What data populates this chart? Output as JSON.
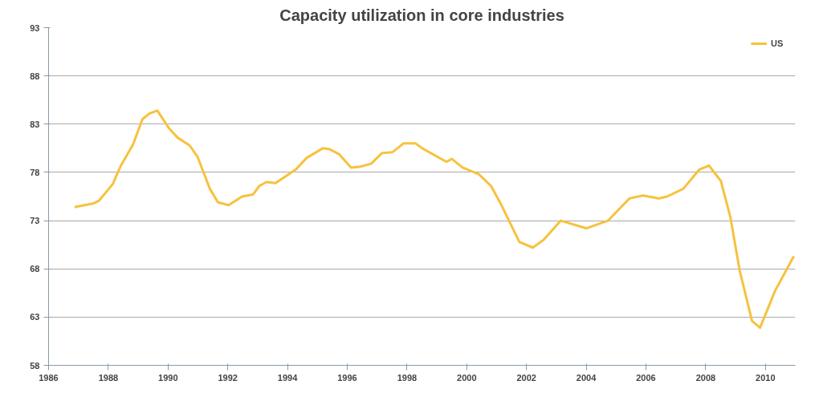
{
  "chart_data": {
    "type": "line",
    "title": "Capacity utilization in core industries",
    "series": [
      {
        "name": "US",
        "color": "#f6c23e",
        "x": [
          1986.87,
          1987.52,
          1987.7,
          1988.15,
          1988.42,
          1988.83,
          1989.14,
          1989.37,
          1989.64,
          1990.05,
          1990.32,
          1990.72,
          1990.99,
          1991.4,
          1991.67,
          1992.03,
          1992.48,
          1992.84,
          1993.06,
          1993.29,
          1993.6,
          1994.28,
          1994.64,
          1995.18,
          1995.41,
          1995.72,
          1996.13,
          1996.44,
          1996.8,
          1997.16,
          1997.52,
          1997.88,
          1998.29,
          1998.51,
          1999.32,
          1999.5,
          1999.86,
          2000.41,
          2000.81,
          2001.13,
          2001.76,
          2002.21,
          2002.57,
          2003.15,
          2004.01,
          2004.73,
          2005.45,
          2005.9,
          2006.44,
          2006.71,
          2007.25,
          2007.79,
          2008.11,
          2008.51,
          2008.83,
          2009.14,
          2009.55,
          2009.82,
          2010.32,
          2010.95
        ],
        "values": [
          74.4,
          74.8,
          75.1,
          76.8,
          78.7,
          80.9,
          83.5,
          84.1,
          84.4,
          82.5,
          81.6,
          80.8,
          79.6,
          76.3,
          74.9,
          74.6,
          75.5,
          75.7,
          76.6,
          77.0,
          76.9,
          78.3,
          79.5,
          80.5,
          80.4,
          79.9,
          78.5,
          78.6,
          78.9,
          80.0,
          80.1,
          81.0,
          81.0,
          80.5,
          79.1,
          79.4,
          78.5,
          77.8,
          76.6,
          74.8,
          70.8,
          70.2,
          71.0,
          73.0,
          72.2,
          73.0,
          75.3,
          75.6,
          75.3,
          75.5,
          76.3,
          78.3,
          78.7,
          77.1,
          73.3,
          67.8,
          62.6,
          61.9,
          65.7,
          69.3
        ]
      }
    ],
    "xlim": [
      1986,
      2011
    ],
    "xticks": [
      1986,
      1988,
      1990,
      1992,
      1994,
      1996,
      1998,
      2000,
      2002,
      2004,
      2006,
      2008,
      2010
    ],
    "ylim": [
      58,
      93
    ],
    "yticks": [
      58,
      63,
      68,
      73,
      78,
      83,
      88,
      93
    ],
    "grid": "y",
    "legend": "top right",
    "line_style": "solid",
    "marker": "none"
  }
}
